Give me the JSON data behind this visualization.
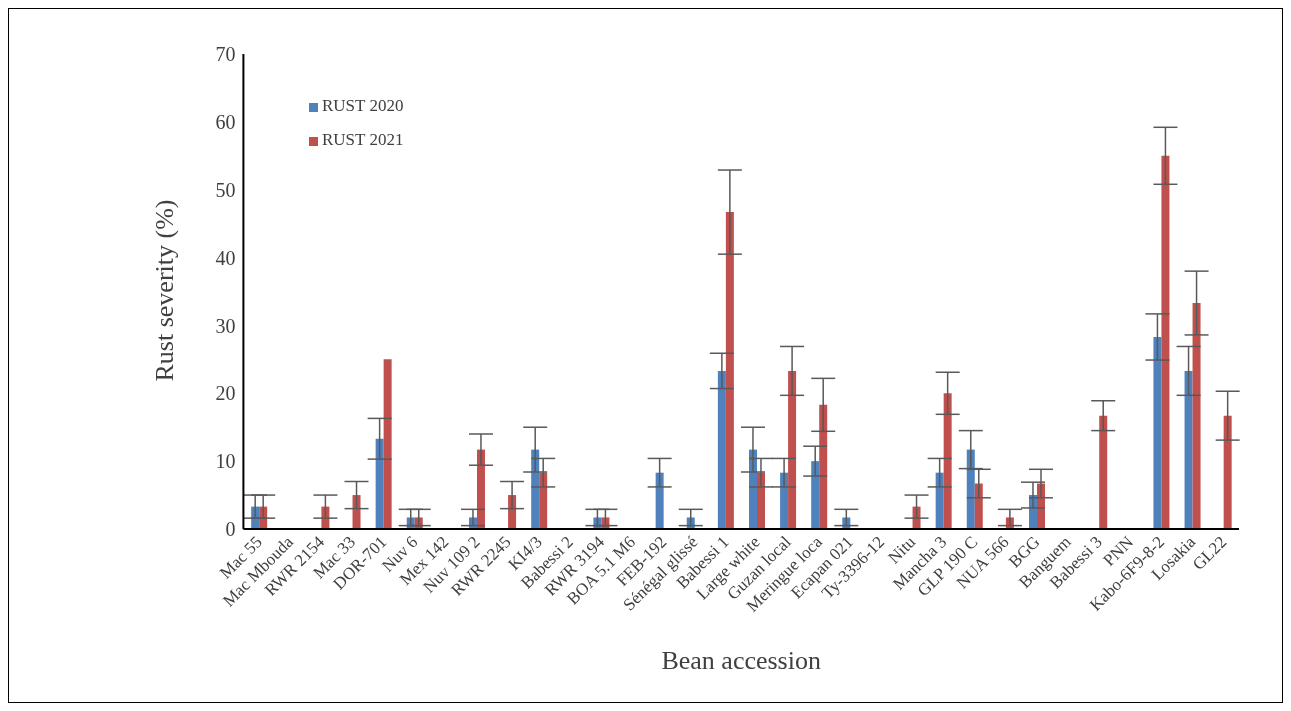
{
  "chart_data": {
    "type": "bar",
    "xlabel": "Bean accession",
    "ylabel": "Rust severity (%)",
    "categories": [
      "Mac 55",
      "Mac Mbouda",
      "RWR 2154",
      "Mac 33",
      "DOR-701",
      "Nuv 6",
      "Mex 142",
      "Nuv 109 2",
      "RWR 2245",
      "KI4/3",
      "Babessi 2",
      "RWR 3194",
      "BOA 5.1 M6",
      "FEB-192",
      "Sénégal glissé",
      "Babessi 1",
      "Large white",
      "Guzan local",
      "Meringue loca",
      "Ecapan 021",
      "Ty-3396-12",
      "Nitu",
      "Mancha 3",
      "GLP 190 C",
      "NUA 566",
      "BGG",
      "Banguem",
      "Babessi 3",
      "PNN",
      "Kabo-6F9-8-2",
      "Losakia",
      "GL22"
    ],
    "series": [
      {
        "name": "RUST 2020",
        "color": "#4f81bd",
        "values": [
          3.3,
          0,
          0,
          0,
          13.3,
          1.7,
          0,
          1.7,
          0,
          11.7,
          0,
          1.7,
          0,
          8.3,
          1.7,
          23.3,
          11.7,
          8.3,
          10,
          1.7,
          0,
          0,
          8.3,
          11.7,
          0,
          5,
          0,
          0,
          0,
          28.3,
          23.3,
          0
        ],
        "errors": [
          1.7,
          null,
          null,
          null,
          3,
          1.2,
          null,
          1.2,
          null,
          3.3,
          null,
          1.2,
          null,
          2.1,
          1.2,
          2.6,
          3.3,
          2.1,
          2.2,
          1.2,
          null,
          null,
          2.1,
          2.8,
          null,
          1.9,
          null,
          null,
          null,
          3.4,
          3.6,
          null
        ]
      },
      {
        "name": "RUST 2021",
        "color": "#c0504d",
        "values": [
          3.3,
          0,
          3.3,
          5,
          25,
          1.7,
          0,
          11.7,
          5,
          8.3,
          0,
          1.7,
          0,
          0,
          0,
          46.7,
          8.3,
          23.3,
          18.3,
          0,
          0,
          3.3,
          20,
          6.7,
          1.7,
          6.7,
          0,
          16.7,
          0,
          55,
          33.3,
          16.7
        ],
        "errors": [
          1.7,
          null,
          1.7,
          2,
          null,
          1.2,
          null,
          2.3,
          2,
          2.1,
          null,
          1.2,
          null,
          null,
          null,
          6.2,
          2.1,
          3.6,
          3.9,
          null,
          null,
          1.7,
          3.1,
          2.1,
          1.2,
          2.1,
          null,
          2.2,
          null,
          4.2,
          4.7,
          3.6
        ]
      }
    ],
    "ylim": [
      0,
      70
    ],
    "yticks": [
      0,
      10,
      20,
      30,
      40,
      50,
      60,
      70
    ],
    "grid": false,
    "legend": "top left"
  }
}
